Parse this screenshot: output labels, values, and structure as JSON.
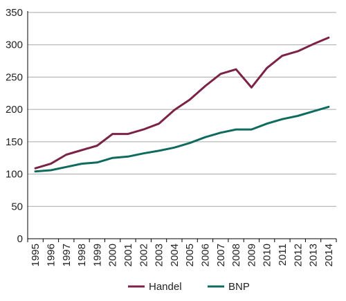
{
  "chart_data": {
    "type": "line",
    "title": "",
    "xlabel": "",
    "ylabel": "",
    "x": [
      "1995",
      "1996",
      "1997",
      "1998",
      "1999",
      "2000",
      "2001",
      "2002",
      "2003",
      "2004",
      "2005",
      "2006",
      "2007",
      "2008",
      "2009",
      "2010",
      "2011",
      "2012",
      "2013",
      "2014"
    ],
    "ylim": [
      0,
      350
    ],
    "yticks": [
      0,
      50,
      100,
      150,
      200,
      250,
      300,
      350
    ],
    "grid": true,
    "legend_position": "bottom",
    "series": [
      {
        "name": "Handel",
        "color": "#7b2346",
        "values": [
          109,
          116,
          130,
          137,
          144,
          162,
          162,
          169,
          178,
          199,
          215,
          236,
          255,
          262,
          234,
          264,
          283,
          290,
          301,
          311
        ]
      },
      {
        "name": "BNP",
        "color": "#0e6b5e",
        "values": [
          104,
          106,
          111,
          116,
          118,
          125,
          127,
          132,
          136,
          141,
          148,
          157,
          164,
          169,
          169,
          178,
          185,
          190,
          197,
          204
        ]
      }
    ]
  }
}
